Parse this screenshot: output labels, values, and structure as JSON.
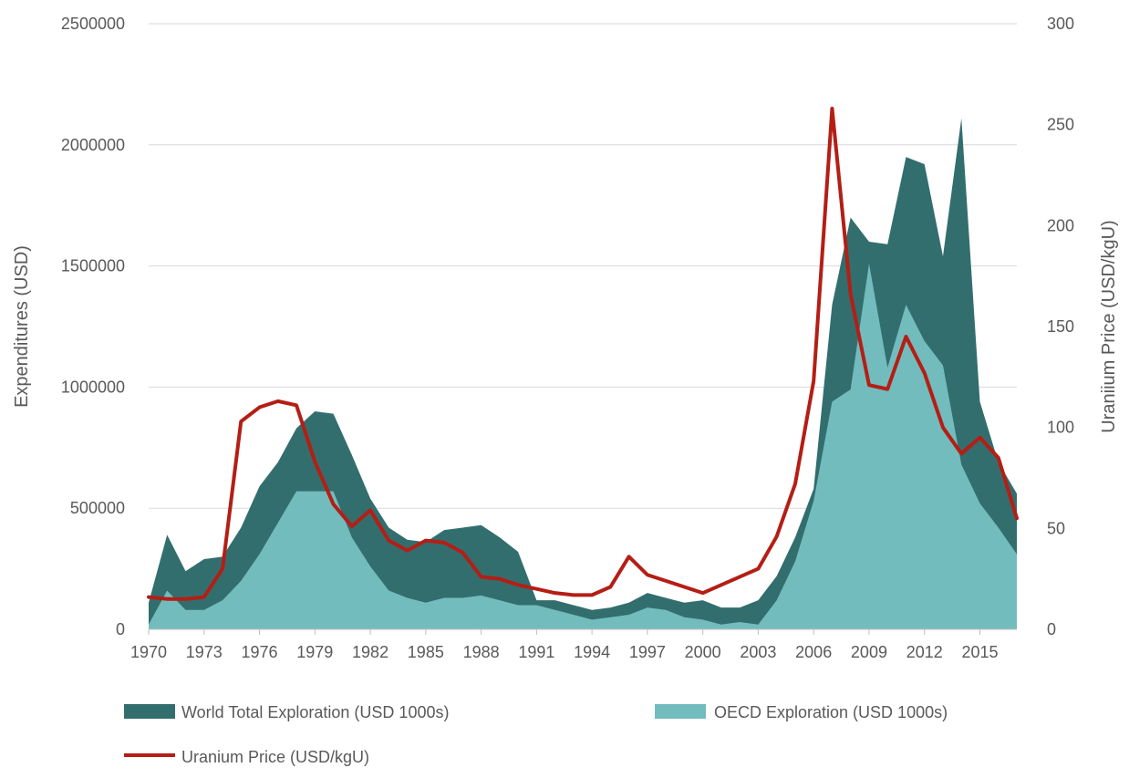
{
  "chart_data": {
    "type": "area",
    "title": "",
    "x_start": 1970,
    "x_end": 2017,
    "x_tick_labels": [
      "1970",
      "1973",
      "1976",
      "1979",
      "1982",
      "1985",
      "1988",
      "1991",
      "1994",
      "1997",
      "2000",
      "2003",
      "2006",
      "2009",
      "2012",
      "2015"
    ],
    "y_left": {
      "label": "Expenditures (USD)",
      "range": [
        0,
        2500000
      ],
      "tick_labels": [
        "0",
        "500000",
        "1000000",
        "1500000",
        "2000000",
        "2500000"
      ]
    },
    "y_right": {
      "label": "Uraniium Price (USD/kgU)",
      "range": [
        0,
        300
      ],
      "tick_labels": [
        "0",
        "50",
        "100",
        "150",
        "200",
        "250",
        "300"
      ]
    },
    "grid": true,
    "legend_position": "bottom",
    "series": [
      {
        "name": "World Total Exploration (USD 1000s)",
        "kind": "area",
        "axis": "left",
        "color": "#336e6e",
        "x": [
          1970,
          1971,
          1972,
          1973,
          1974,
          1975,
          1976,
          1977,
          1978,
          1979,
          1980,
          1981,
          1982,
          1983,
          1984,
          1985,
          1986,
          1987,
          1988,
          1989,
          1990,
          1991,
          1992,
          1993,
          1994,
          1995,
          1996,
          1997,
          1998,
          1999,
          2000,
          2001,
          2002,
          2003,
          2004,
          2005,
          2006,
          2007,
          2008,
          2009,
          2010,
          2011,
          2012,
          2013,
          2014,
          2015,
          2016,
          2017
        ],
        "values": [
          110000,
          390000,
          240000,
          290000,
          300000,
          420000,
          590000,
          690000,
          830000,
          900000,
          890000,
          720000,
          540000,
          420000,
          370000,
          360000,
          410000,
          420000,
          430000,
          380000,
          320000,
          120000,
          120000,
          100000,
          80000,
          90000,
          110000,
          150000,
          130000,
          110000,
          120000,
          90000,
          90000,
          120000,
          220000,
          380000,
          580000,
          1340000,
          1700000,
          1600000,
          1590000,
          1950000,
          1920000,
          1540000,
          2110000,
          940000,
          690000,
          560000
        ]
      },
      {
        "name": "OECD Exploration (USD 1000s)",
        "kind": "area",
        "axis": "left",
        "color": "#73bcbd",
        "x": [
          1970,
          1971,
          1972,
          1973,
          1974,
          1975,
          1976,
          1977,
          1978,
          1979,
          1980,
          1981,
          1982,
          1983,
          1984,
          1985,
          1986,
          1987,
          1988,
          1989,
          1990,
          1991,
          1992,
          1993,
          1994,
          1995,
          1996,
          1997,
          1998,
          1999,
          2000,
          2001,
          2002,
          2003,
          2004,
          2005,
          2006,
          2007,
          2008,
          2009,
          2010,
          2011,
          2012,
          2013,
          2014,
          2015,
          2016,
          2017
        ],
        "values": [
          20000,
          160000,
          80000,
          80000,
          120000,
          200000,
          310000,
          440000,
          570000,
          570000,
          570000,
          380000,
          260000,
          160000,
          130000,
          110000,
          130000,
          130000,
          140000,
          120000,
          100000,
          100000,
          80000,
          60000,
          40000,
          50000,
          60000,
          90000,
          80000,
          50000,
          40000,
          20000,
          30000,
          20000,
          120000,
          280000,
          530000,
          940000,
          990000,
          1510000,
          1080000,
          1340000,
          1190000,
          1090000,
          680000,
          520000,
          420000,
          310000
        ]
      },
      {
        "name": "Uranium Price (USD/kgU)",
        "kind": "line",
        "axis": "right",
        "color": "#b41e15",
        "x": [
          1970,
          1971,
          1972,
          1973,
          1974,
          1975,
          1976,
          1977,
          1978,
          1979,
          1980,
          1981,
          1982,
          1983,
          1984,
          1985,
          1986,
          1987,
          1988,
          1989,
          1990,
          1991,
          1992,
          1993,
          1994,
          1995,
          1996,
          1997,
          1998,
          1999,
          2000,
          2001,
          2002,
          2003,
          2004,
          2005,
          2006,
          2007,
          2008,
          2009,
          2010,
          2011,
          2012,
          2013,
          2014,
          2015,
          2016,
          2017
        ],
        "values": [
          16,
          15,
          15,
          16,
          30,
          103,
          110,
          113,
          111,
          83,
          62,
          51,
          59,
          44,
          39,
          44,
          43,
          38,
          26,
          25,
          22,
          20,
          18,
          17,
          17,
          21,
          36,
          27,
          24,
          21,
          18,
          22,
          26,
          30,
          46,
          72,
          123,
          258,
          166,
          121,
          119,
          145,
          127,
          100,
          87,
          95,
          85,
          55
        ]
      }
    ]
  }
}
